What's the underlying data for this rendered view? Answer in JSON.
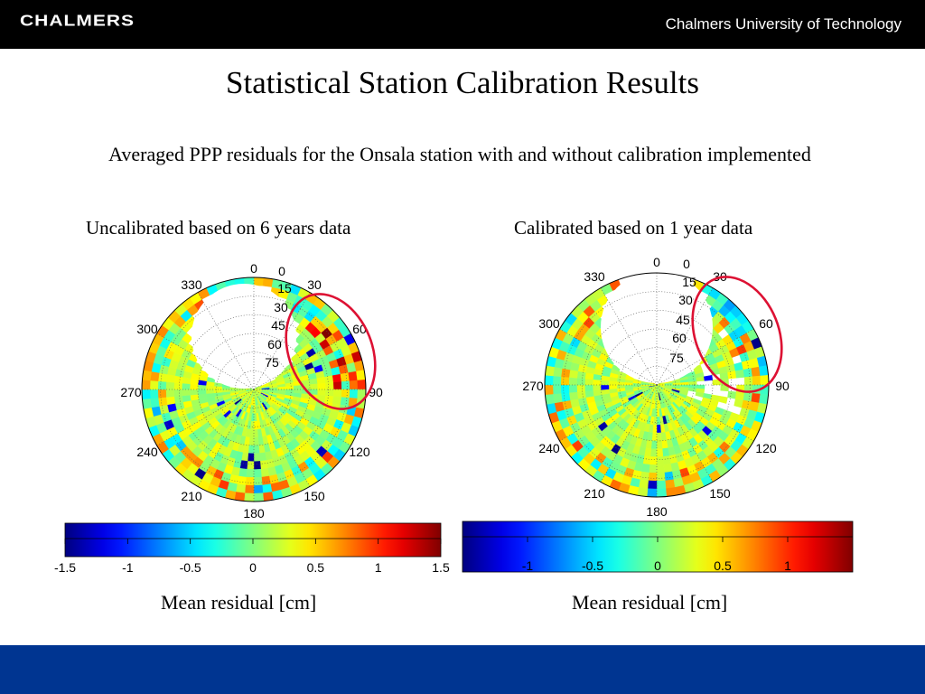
{
  "header": {
    "logo_text": "CHALMERS",
    "university": "Chalmers University of Technology",
    "background": "#000000"
  },
  "footer": {
    "background": "#003591"
  },
  "slide": {
    "title": "Statistical Station Calibration Results",
    "subtitle": "Averaged PPP residuals for the Onsala station with and without calibration implemented"
  },
  "chart_data": [
    {
      "type": "heatmap",
      "projection": "polar (skyplot)",
      "title": "Uncalibrated based on 6 years data",
      "azimuth_labels": [
        "0",
        "30",
        "60",
        "90",
        "120",
        "150",
        "180",
        "210",
        "240",
        "270",
        "300",
        "330"
      ],
      "elevation_labels": [
        "0",
        "15",
        "30",
        "45",
        "60",
        "75"
      ],
      "colorbar": {
        "label": "Mean residual [cm]",
        "colormap": "jet",
        "range": [
          -1.5,
          1.5
        ],
        "ticks": [
          "-1.5",
          "-1",
          "-0.5",
          "0",
          "0.5",
          "1",
          "1.5"
        ]
      },
      "highlight": {
        "shape": "ellipse",
        "color": "#dd1133",
        "azimuth_range": [
          30,
          90
        ]
      },
      "data_gap": "no data for elevations above ~45 deg toward north"
    },
    {
      "type": "heatmap",
      "projection": "polar (skyplot)",
      "title": "Calibrated based on 1 year data",
      "azimuth_labels": [
        "0",
        "30",
        "60",
        "90",
        "120",
        "150",
        "180",
        "210",
        "240",
        "270",
        "300",
        "330"
      ],
      "elevation_labels": [
        "0",
        "15",
        "30",
        "45",
        "60",
        "75"
      ],
      "colorbar": {
        "label": "Mean residual [cm]",
        "colormap": "jet",
        "range": [
          -1.5,
          1.5
        ],
        "ticks": [
          "-1",
          "-0.5",
          "0",
          "0.5",
          "1"
        ]
      },
      "highlight": {
        "shape": "ellipse",
        "color": "#dd1133",
        "azimuth_range": [
          30,
          90
        ]
      },
      "data_gap": "no data for elevations above ~45 deg toward north"
    }
  ]
}
